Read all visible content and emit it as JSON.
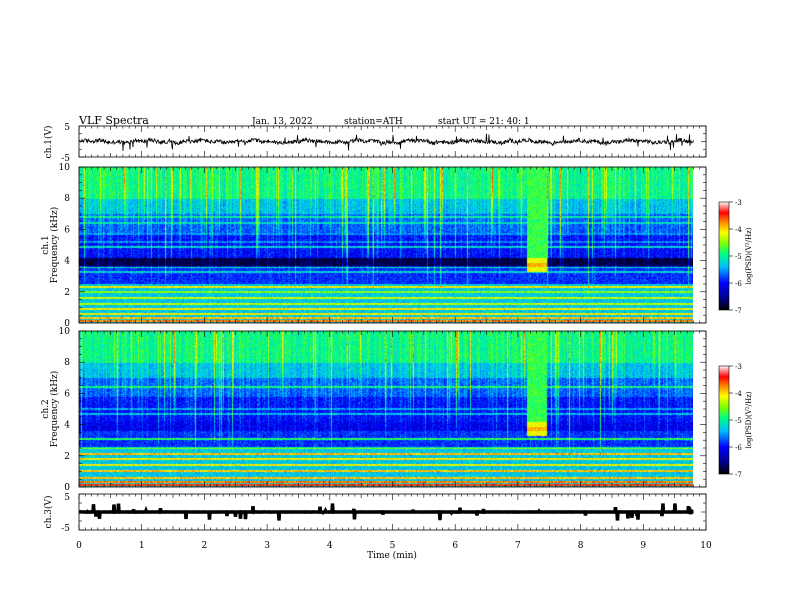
{
  "header": {
    "title": "VLF  Spectra",
    "date": "Jan.  13,  2022",
    "station": "station=ATH",
    "start": "start  UT  =    21: 40: 1"
  },
  "chart_data": [
    {
      "type": "line",
      "panel": "ch1-waveform",
      "ylabel": "ch.1(V)",
      "yticks": [
        "5",
        "-5"
      ],
      "ylim": [
        -5,
        5
      ],
      "xlim": [
        0,
        10
      ],
      "trace_end_min": 9.8,
      "level": 0.0,
      "color": "#000000"
    },
    {
      "type": "heatmap",
      "panel": "ch1-spectrogram",
      "ylabel": "ch.1\nFrequency  (kHz)",
      "ylabel_top": "ch.1",
      "ylabel_bottom": "Frequency  (kHz)",
      "ylim": [
        0,
        10
      ],
      "yticks": [
        0,
        2,
        4,
        6,
        8,
        10
      ],
      "xlim": [
        0,
        10
      ],
      "data_end_min": 9.8,
      "colorbar": {
        "label": "log(PSD)(V²/Hz)",
        "ticks": [
          "-3",
          "-4",
          "-5",
          "-6",
          "-7"
        ],
        "range": [
          -7,
          -3
        ]
      },
      "burst": {
        "start_min": 7.15,
        "end_min": 7.45,
        "f_low_khz": 3.3,
        "f_high_khz": 10
      }
    },
    {
      "type": "heatmap",
      "panel": "ch2-spectrogram",
      "ylabel": "ch.2\nFrequency  (kHz)",
      "ylabel_top": "ch.2",
      "ylabel_bottom": "Frequency  (kHz)",
      "ylim": [
        0,
        10
      ],
      "yticks": [
        0,
        2,
        4,
        6,
        8,
        10
      ],
      "xlim": [
        0,
        10
      ],
      "data_end_min": 9.8,
      "colorbar": {
        "label": "log(PSD)(V²/Hz)",
        "ticks": [
          "-3",
          "-4",
          "-5",
          "-6",
          "-7"
        ],
        "range": [
          -7,
          -3
        ]
      },
      "burst": {
        "start_min": 7.15,
        "end_min": 7.45,
        "f_low_khz": 3.3,
        "f_high_khz": 10
      }
    },
    {
      "type": "line",
      "panel": "ch3-waveform",
      "ylabel": "ch.3(V)",
      "yticks": [
        "5",
        "-5"
      ],
      "ylim": [
        -5,
        5
      ],
      "xlim": [
        0,
        10
      ],
      "trace_end_min": 9.8,
      "level": 0.0,
      "color": "#000000",
      "xlabel": "Time  (min)",
      "xticks": [
        0,
        1,
        2,
        3,
        4,
        5,
        6,
        7,
        8,
        9,
        10
      ]
    }
  ]
}
